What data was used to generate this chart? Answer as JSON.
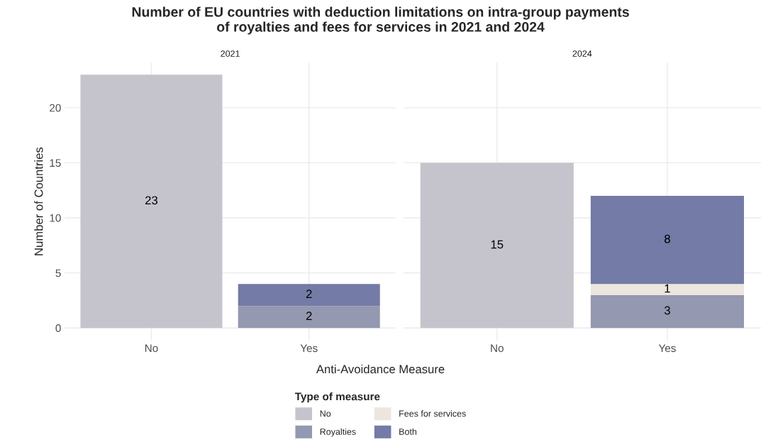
{
  "chart_data": [
    {
      "type": "bar",
      "title": "Number of EU countries with deduction limitations on intra-group payments\nof royalties and fees for services in 2021 and 2024",
      "subtitle": "2021",
      "xlabel": "Anti-Avoidance Measure",
      "ylabel": "Number of Countries",
      "legend_title": "Type of measure",
      "categories": [
        "No",
        "Yes"
      ],
      "stacked": true,
      "data_labels": true,
      "ylim": [
        -1.15,
        24.1
      ],
      "yticks": [
        0,
        5,
        10,
        15,
        20
      ],
      "grid": true,
      "legend": "bottom",
      "tick_labels": true,
      "series": [
        {
          "name": "No",
          "color": "#c5c3cc",
          "values": [
            23,
            null
          ]
        },
        {
          "name": "Royalties",
          "color": "#9498b0",
          "values": [
            null,
            2
          ]
        },
        {
          "name": "Fees for services",
          "color": "#ece6df",
          "values": [
            null,
            null
          ]
        },
        {
          "name": "Both",
          "color": "#737ba6",
          "values": [
            null,
            2
          ]
        }
      ]
    },
    {
      "type": "bar",
      "subtitle": "2024",
      "categories": [
        "No",
        "Yes"
      ],
      "stacked": true,
      "data_labels": true,
      "ylim": [
        -1.15,
        24.1
      ],
      "grid": true,
      "tick_labels": "x",
      "series": [
        {
          "color": "#c5c3cc",
          "values": [
            15,
            null
          ]
        },
        {
          "color": "#9498b0",
          "values": [
            null,
            3
          ]
        },
        {
          "color": "#ece6df",
          "values": [
            null,
            1
          ]
        },
        {
          "color": "#737ba6",
          "values": [
            null,
            8
          ]
        }
      ]
    }
  ]
}
